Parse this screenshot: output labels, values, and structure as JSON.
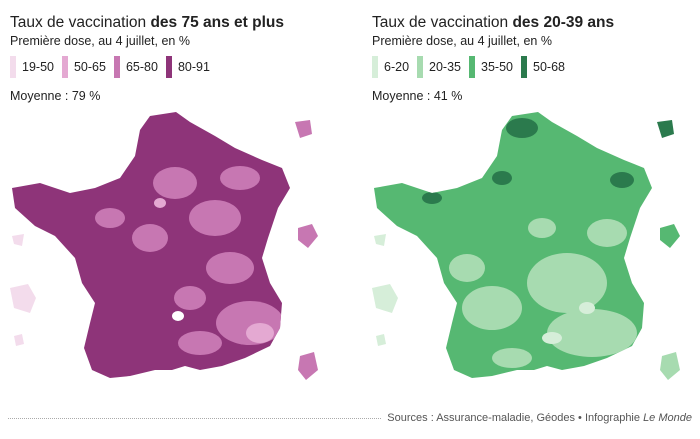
{
  "left": {
    "title_prefix": "Taux de vaccination ",
    "title_bold": "des 75 ans et plus",
    "subtitle": "Première dose, au 4 juillet, en %",
    "mean": "Moyenne : 79 %",
    "legend": [
      {
        "label": "19-50",
        "color": "#f3dcec"
      },
      {
        "label": "50-65",
        "color": "#e4a9d2"
      },
      {
        "label": "65-80",
        "color": "#c777b2"
      },
      {
        "label": "80-91",
        "color": "#8e3479"
      }
    ]
  },
  "right": {
    "title_prefix": "Taux de vaccination ",
    "title_bold": "des 20-39 ans",
    "subtitle": "Première dose, au 4 juillet, en %",
    "mean": "Moyenne : 41 %",
    "legend": [
      {
        "label": "6-20",
        "color": "#d6eed9"
      },
      {
        "label": "20-35",
        "color": "#a7dbb0"
      },
      {
        "label": "35-50",
        "color": "#56b872"
      },
      {
        "label": "50-68",
        "color": "#2b7a4d"
      }
    ]
  },
  "footer": {
    "source": "Sources : Assurance-maladie, Géodes • Infographie ",
    "source_italic": "Le Monde"
  }
}
